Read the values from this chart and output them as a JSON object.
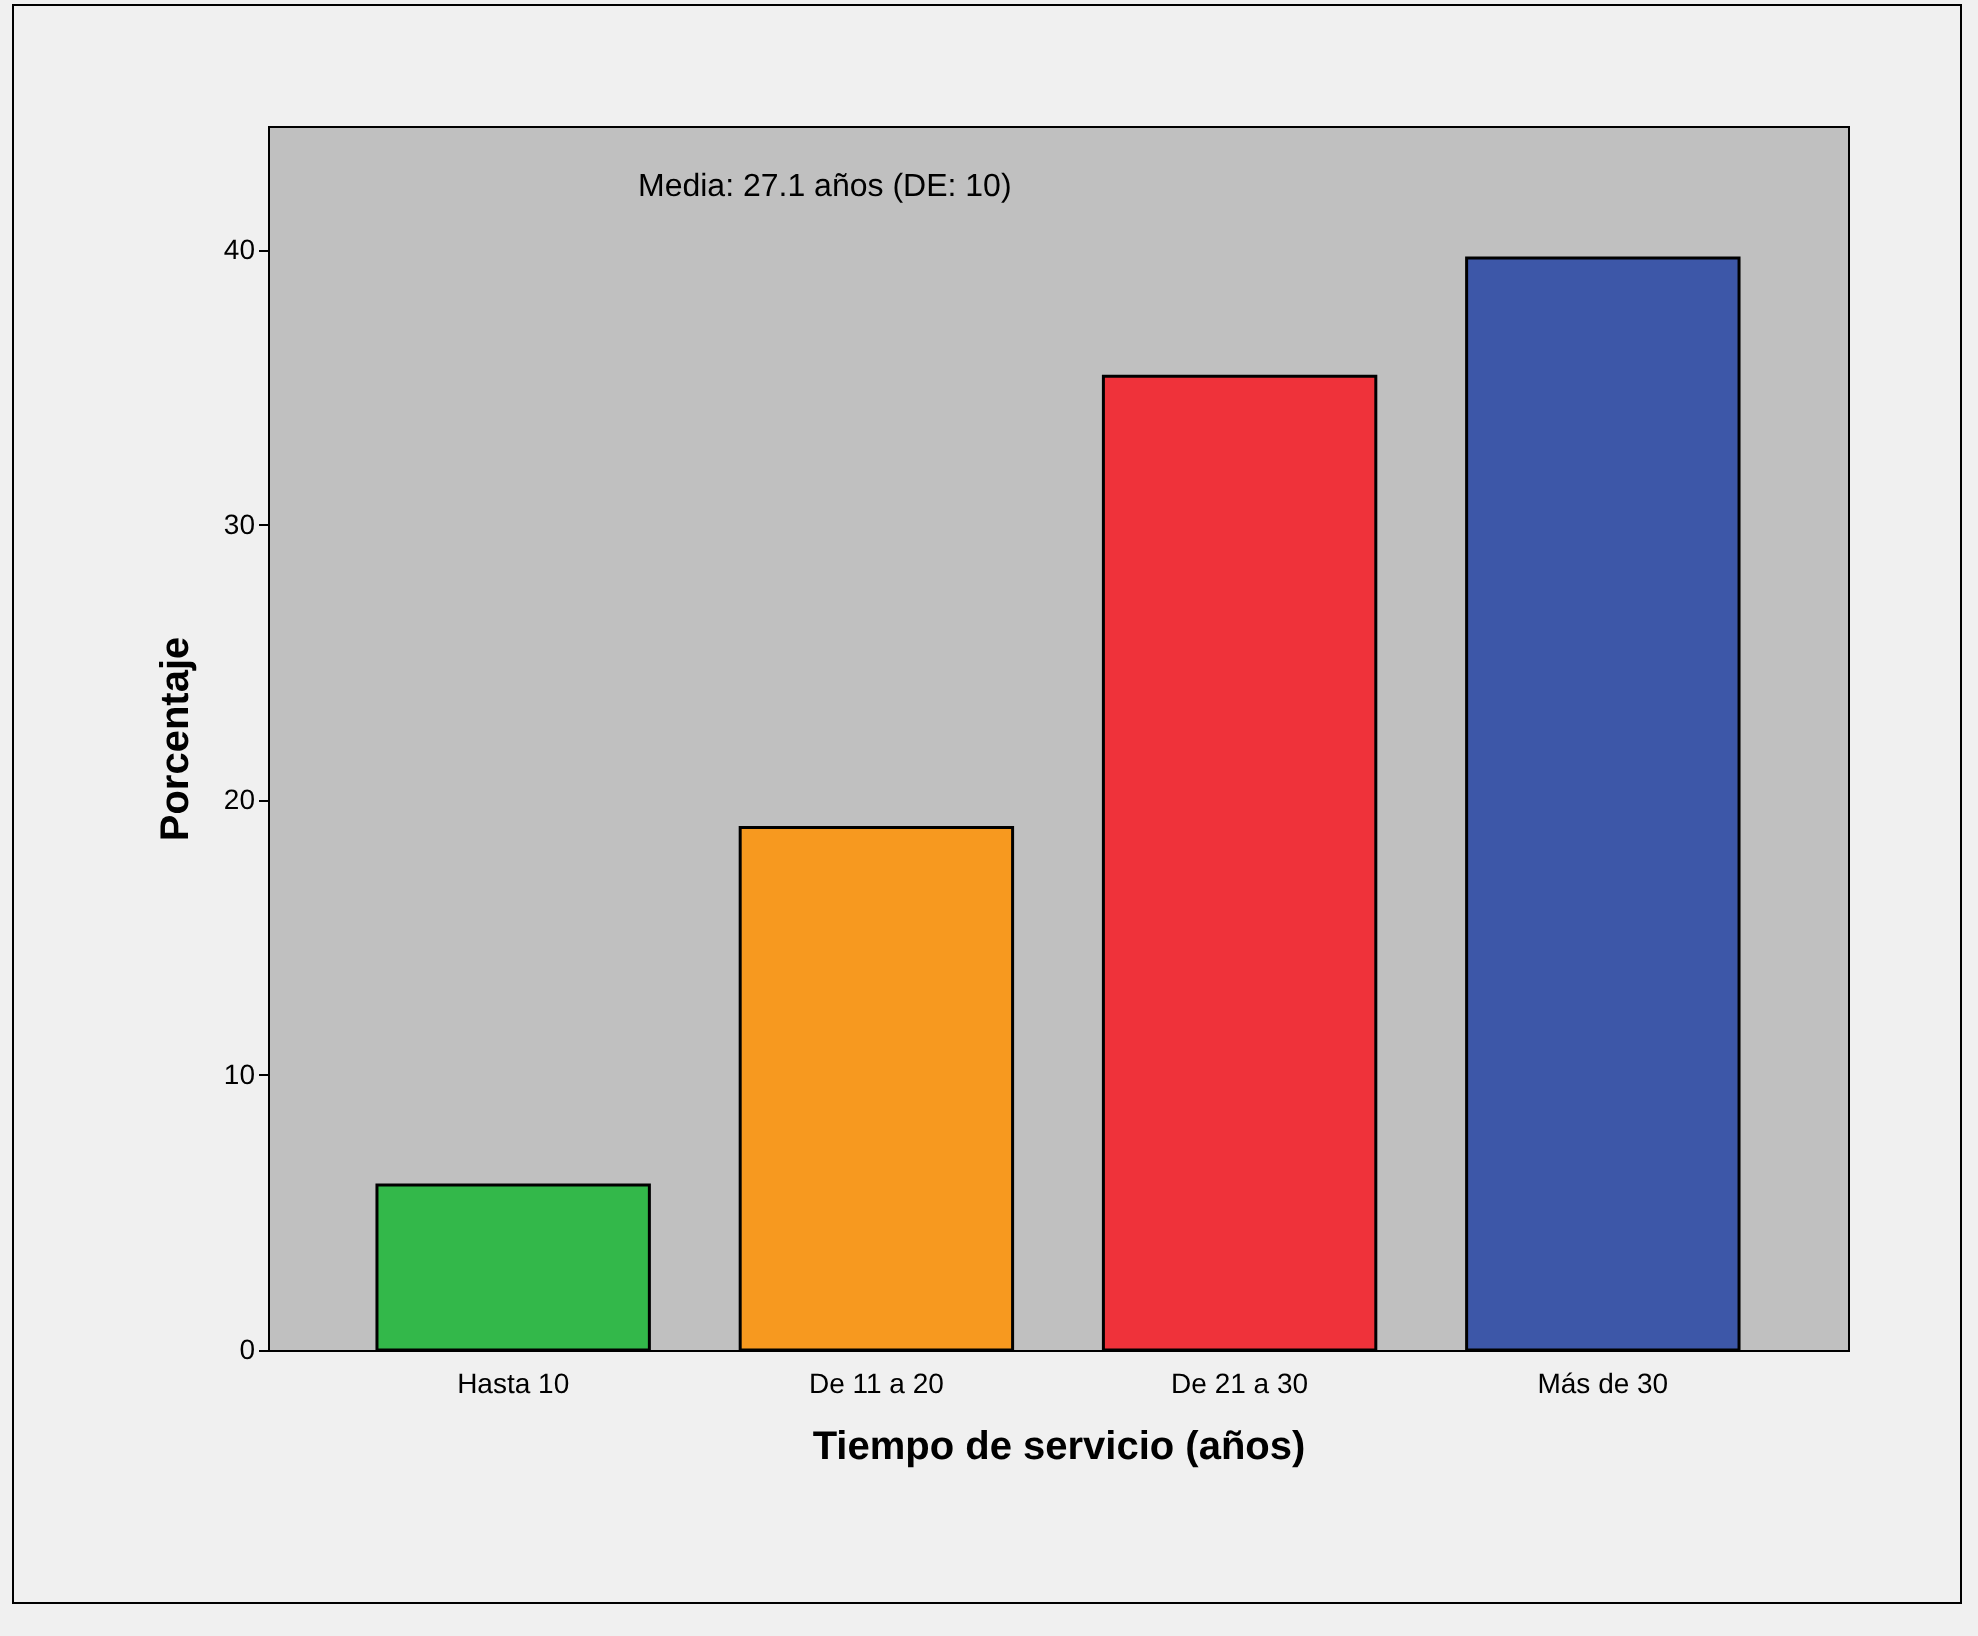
{
  "chart_data": {
    "type": "bar",
    "xlabel": "Tiempo de servicio (años)",
    "ylabel": "Porcentaje",
    "categories": [
      "Hasta 10",
      "De 11 a 20",
      "De 21 a 30",
      "Más de 30"
    ],
    "values": [
      6.0,
      19.0,
      35.4,
      39.7
    ],
    "colors": [
      "#33b84a",
      "#f7991f",
      "#ef323a",
      "#3d57a8"
    ],
    "ylim": [
      0,
      44.5
    ],
    "yticks": [
      0,
      10,
      20,
      30,
      40
    ],
    "grid": false,
    "annotations": [
      "Media: 27.1 años (DE: 10)"
    ]
  }
}
